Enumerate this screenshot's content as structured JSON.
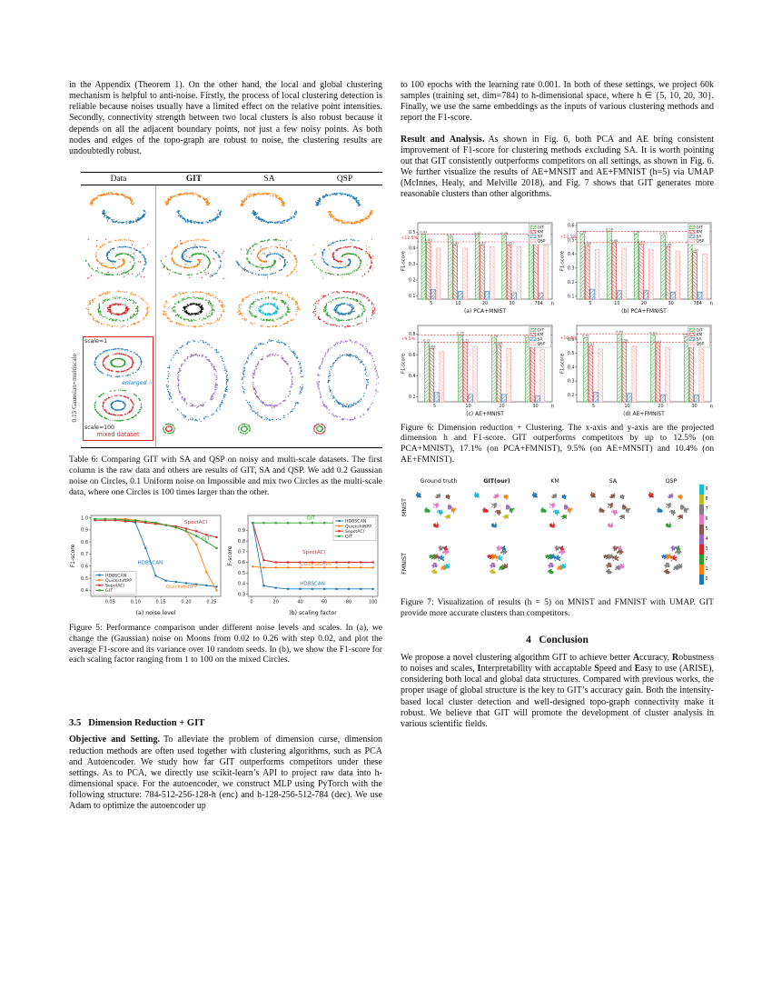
{
  "text": {
    "left_para1": "in the Appendix (Theorem 1). On the other hand, the local and global clustering mechanism is helpful to anti-noise. Firstly, the process of local clustering detection is reliable because noises usually have a limited effect on the relative point intensities. Secondly, connectivity strength between two local clusters is also robust because it depends on all the adjacent boundary points, not just a few noisy points. As both nodes and edges of the topo-graph are robust to noise, the clustering results are undoubtedly robust.",
    "table6_caption": "Table 6: Comparing GIT with SA and QSP on noisy and multi-scale datasets. The first column is the raw data and others are results of GIT, SA and QSP. We add 0.2 Gaussian noise on Circles, 0.1 Uniform noise on Impossible and mix two Circles as the multi-scale data, where one Circles is 100 times larger than the other.",
    "fig5_caption": "Figure 5: Performance comparison under different noise levels and scales. In (a), we change the (Gaussian) noise on Moons from 0.02 to 0.26 with step 0.02, and plot the average F1-score and its variance over 10 random seeds. In (b), we show the F1-score for each scaling factor ranging from 1 to 100 on the mixed Circles.",
    "sec35_title": "3.5   Dimension Reduction + GIT",
    "objective_label": "Objective and Setting.",
    "objective_body": "To alleviate the problem of dimension curse, dimension reduction methods are often used together with clustering algorithms, such as PCA and Autoencoder. We study how far GIT outperforms competitors under these settings. As to PCA, we directly use scikit-learn’s API to project raw data into h-dimensional space. For the autoencoder, we construct MLP using PyTorch with the following structure: 784-512-256-128-h (enc) and h-128-256-512-784 (dec). We use Adam to optimize the autoencoder up",
    "right_para1": "to 100 epochs with the learning rate 0.001. In both of these settings, we project 60k samples (training set, dim=784) to h-dimensional space, where h ∈ {5, 10, 20, 30}. Finally, we use the same embeddings as the inputs of various clustering methods and report the F1-score.",
    "result_label": "Result and Analysis.",
    "result_body": "As shown in Fig. 6, both PCA and AE bring consistent improvement of F1-score for clustering methods excluding SA. It is worth pointing out that GIT consistently outperforms competitors on all settings, as shown in Fig. 6. We further visualize the results of AE+MNSIT and AE+FMNIST (h=5) via UMAP (McInnes, Healy, and Melville 2018), and Fig. 7 shows that GIT generates more reasonable clusters than other algorithms.",
    "fig6_caption": "Figure 6: Dimension reduction + Clustering. The x-axis and y-axis are the projected dimension h and F1-score. GIT outperforms competitors by up to 12.5% (on PCA+MNIST), 17.1% (on PCA+FMNIST), 9.5% (on AE+MNSIT) and 10.4% (on AE+FMNIST).",
    "fig7_caption": "Figure 7: Visualization of results (h = 5) on MNIST and FMNIST with UMAP. GIT provide more accurate clusters than competitors.",
    "sec4_title": "4   Conclusion"
  },
  "conclusion_segments": [
    {
      "t": "We propose a novel clustering algorithm GIT to achieve better "
    },
    {
      "t": "A",
      "b": 1
    },
    {
      "t": "ccuracy, "
    },
    {
      "t": "R",
      "b": 1
    },
    {
      "t": "obustness to noises and scales, "
    },
    {
      "t": "I",
      "b": 1
    },
    {
      "t": "nterpretability with accaptable "
    },
    {
      "t": "S",
      "b": 1
    },
    {
      "t": "peed and "
    },
    {
      "t": "E",
      "b": 1
    },
    {
      "t": "asy to use (ARISE), considering both local and global data structures. Compared with previous works, the proper usage of global structure is the key to GIT’s accuracy gain. Both the intensity-based local cluster detection and well-designed topo-graph connectivity make it robust. We believe that GIT will promote the development of cluster analysis in various scientific fields."
    }
  ],
  "table6_fig": {
    "headers": [
      {
        "t": "Data",
        "b": 0
      },
      {
        "t": "GIT",
        "b": 1
      },
      {
        "t": "SA",
        "b": 0
      },
      {
        "t": "QSP",
        "b": 0
      }
    ],
    "side_label": "0.15 Gaussian+multiscale",
    "labels": {
      "scale1": "scale=1",
      "scale100": "scale=100",
      "mixed": "mixed dataset",
      "enlarged": "enlarged ⌕"
    },
    "rows": [
      {
        "h": 50,
        "cells": [
          {
            "type": "moons",
            "colors": [
              "#ff7f0e",
              "#1f77b4"
            ],
            "seed": 101
          },
          {
            "type": "moons",
            "colors": [
              "#ff7f0e",
              "#1f77b4"
            ],
            "seed": 102
          },
          {
            "type": "moons",
            "colors": [
              "#ff7f0e",
              "#1f77b4"
            ],
            "seed": 103
          },
          {
            "type": "moons",
            "colors": [
              "#1f77b4",
              "#ff7f0e"
            ],
            "seed": 104
          }
        ]
      },
      {
        "h": 52,
        "cells": [
          {
            "type": "spiral",
            "colors": [
              "#ff7f0e",
              "#1f77b4",
              "#2ca02c"
            ],
            "noise": "#d62728",
            "seed": 111
          },
          {
            "type": "spiral",
            "colors": [
              "#ff7f0e",
              "#1f77b4",
              "#2ca02c"
            ],
            "noise": "#d62728",
            "seed": 112
          },
          {
            "type": "spiral",
            "colors": [
              "#2ca02c",
              "#ff7f0e",
              "#1f77b4"
            ],
            "noise": "#8c564b",
            "seed": 113
          },
          {
            "type": "spiral",
            "colors": [
              "#1f77b4",
              "#d62728",
              "#2ca02c"
            ],
            "noise": "#ff7f0e",
            "seed": 114
          }
        ]
      },
      {
        "h": 48,
        "cells": [
          {
            "type": "rings",
            "colors": [
              "#ff7f0e",
              "#2ca02c",
              "#d62728"
            ],
            "seed": 121
          },
          {
            "type": "rings",
            "colors": [
              "#ff7f0e",
              "#2ca02c",
              "#000000"
            ],
            "seed": 122
          },
          {
            "type": "rings",
            "colors": [
              "#ff7f0e",
              "#2ca02c",
              "#17becf"
            ],
            "seed": 123
          },
          {
            "type": "rings",
            "colors": [
              "#d62728",
              "#2ca02c",
              "#1f77b4"
            ],
            "seed": 124
          }
        ]
      }
    ],
    "databox_plots": [
      {
        "type": "rings",
        "colors": [
          "#1f77b4",
          "#d62728",
          "#2ca02c"
        ],
        "seed": 131,
        "n": 0.012
      },
      {
        "type": "rings",
        "colors": [
          "#2ca02c",
          "#d62728",
          "#1f77b4"
        ],
        "seed": 132,
        "n": 0.012
      }
    ],
    "row4_cells": [
      {
        "type": "multiscale",
        "colors": [
          "#1f77b4",
          "#9467bd",
          "#2ca02c",
          "#d62728"
        ],
        "seed": 141
      },
      {
        "type": "multiscale",
        "colors": [
          "#1f77b4",
          "#9467bd",
          "#2ca02c",
          "#2ca02c"
        ],
        "seed": 142
      },
      {
        "type": "multiscale",
        "colors": [
          "#9467bd",
          "#1f77b4",
          "#d62728",
          "#2ca02c"
        ],
        "seed": 143
      }
    ]
  },
  "chart_data": [
    {
      "id": "fig5a",
      "type": "line",
      "xlabel": "(a) noise level",
      "ylabel": "F1-score",
      "x": [
        0.02,
        0.04,
        0.06,
        0.08,
        0.1,
        0.12,
        0.14,
        0.16,
        0.18,
        0.2,
        0.22,
        0.24,
        0.26
      ],
      "xlim": [
        0.012,
        0.268
      ],
      "xticks": [
        0.05,
        0.1,
        0.15,
        0.2,
        0.25
      ],
      "ylim": [
        0.35,
        1.02
      ],
      "yticks": [
        0.4,
        0.5,
        0.6,
        0.7,
        0.8,
        0.9,
        1.0
      ],
      "series": [
        {
          "name": "HDBSCAN",
          "color": "#1f77b4",
          "values": [
            0.99,
            0.99,
            0.99,
            0.98,
            0.96,
            0.75,
            0.52,
            0.48,
            0.47,
            0.46,
            0.45,
            0.44,
            0.43
          ]
        },
        {
          "name": "QuickshiftPP",
          "color": "#ff7f0e",
          "values": [
            0.99,
            0.99,
            0.99,
            0.99,
            0.98,
            0.97,
            0.96,
            0.94,
            0.92,
            0.89,
            0.78,
            0.55,
            0.4
          ]
        },
        {
          "name": "SepctACl",
          "color": "#d62728",
          "values": [
            0.98,
            0.98,
            0.98,
            0.97,
            0.97,
            0.96,
            0.95,
            0.94,
            0.93,
            0.91,
            0.89,
            0.86,
            0.84
          ]
        },
        {
          "name": "GIT",
          "color": "#2ca02c",
          "values": [
            0.99,
            0.99,
            0.99,
            0.98,
            0.98,
            0.97,
            0.96,
            0.94,
            0.92,
            0.89,
            0.85,
            0.8,
            0.75
          ]
        }
      ],
      "inline_labels": [
        {
          "text": "SpectACl",
          "color": "#d62728",
          "x": 0.72,
          "y": 0.1
        },
        {
          "text": "GIT",
          "color": "#2ca02c",
          "x": 0.85,
          "y": 0.31
        },
        {
          "text": "HDBSCAN",
          "color": "#1f77b4",
          "x": 0.36,
          "y": 0.6
        },
        {
          "text": "QuickshiftPP",
          "color": "#ff7f0e",
          "x": 0.58,
          "y": 0.9
        }
      ],
      "legend_pos": "bottom-left"
    },
    {
      "id": "fig5b",
      "type": "line",
      "xlabel": "(b) scaling factor",
      "ylabel": "F-score",
      "x": [
        1,
        10,
        20,
        30,
        40,
        50,
        60,
        70,
        80,
        90,
        100
      ],
      "xlim": [
        -3,
        104
      ],
      "xticks": [
        0,
        20,
        40,
        60,
        80,
        100
      ],
      "ylim": [
        0.28,
        1.04
      ],
      "yticks": [
        0.3,
        0.4,
        0.5,
        0.6,
        0.7,
        0.8,
        0.9
      ],
      "series": [
        {
          "name": "HDBSCAN",
          "color": "#1f77b4",
          "values": [
            0.97,
            0.38,
            0.36,
            0.35,
            0.35,
            0.35,
            0.35,
            0.35,
            0.35,
            0.35,
            0.35
          ]
        },
        {
          "name": "QuickshiftPP",
          "color": "#ff7f0e",
          "values": [
            0.56,
            0.55,
            0.55,
            0.55,
            0.55,
            0.55,
            0.55,
            0.55,
            0.55,
            0.55,
            0.55
          ]
        },
        {
          "name": "SepctACl",
          "color": "#d62728",
          "values": [
            0.97,
            0.62,
            0.6,
            0.6,
            0.6,
            0.6,
            0.6,
            0.6,
            0.6,
            0.6,
            0.6
          ]
        },
        {
          "name": "GIT",
          "color": "#2ca02c",
          "values": [
            0.97,
            0.97,
            0.97,
            0.97,
            0.97,
            0.97,
            0.97,
            0.97,
            0.97,
            0.97,
            0.97
          ]
        }
      ],
      "inline_labels": [
        {
          "text": "GIT",
          "color": "#2ca02c",
          "x": 0.45,
          "y": 0.05
        },
        {
          "text": "SpectACl",
          "color": "#d62728",
          "x": 0.42,
          "y": 0.47
        },
        {
          "text": "QuickShiftPP",
          "color": "#ff7f0e",
          "x": 0.4,
          "y": 0.62
        },
        {
          "text": "HDBSCAN",
          "color": "#1f77b4",
          "x": 0.4,
          "y": 0.86
        }
      ],
      "legend_pos": "top-right"
    },
    {
      "id": "fig6a",
      "type": "bar",
      "title": "(a) PCA+MNIST",
      "annotation": "+12.5%",
      "xlabel_right": "h",
      "ylabel": "F1-score",
      "categories": [
        "5",
        "10",
        "20",
        "30",
        "784"
      ],
      "ylim": [
        0.08,
        0.56
      ],
      "yticks": [
        0.1,
        0.2,
        0.3,
        0.4,
        0.5
      ],
      "series": [
        {
          "name": "GIT",
          "color": "#2ca02c",
          "values": [
            0.49,
            0.47,
            0.48,
            0.48,
            0.47
          ]
        },
        {
          "name": "KM",
          "color": "#d62728",
          "values": [
            0.44,
            0.42,
            0.42,
            0.42,
            0.43
          ]
        },
        {
          "name": "SA",
          "color": "#1f77b4",
          "values": [
            0.14,
            0.13,
            0.13,
            0.12,
            0.12
          ]
        },
        {
          "name": "QSP",
          "color": "#ff9896",
          "values": [
            0.4,
            0.4,
            0.41,
            0.41,
            0.42
          ]
        }
      ]
    },
    {
      "id": "fig6b",
      "type": "bar",
      "title": "(b) PCA+FMNIST",
      "annotation": "+17.1%",
      "xlabel_right": "h",
      "ylabel": "F1-score",
      "categories": [
        "5",
        "10",
        "20",
        "30",
        "784"
      ],
      "ylim": [
        0.08,
        0.62
      ],
      "yticks": [
        0.1,
        0.2,
        0.3,
        0.4,
        0.5,
        0.6
      ],
      "series": [
        {
          "name": "GIT",
          "color": "#2ca02c",
          "values": [
            0.54,
            0.56,
            0.54,
            0.53,
            0.47
          ]
        },
        {
          "name": "KM",
          "color": "#d62728",
          "values": [
            0.46,
            0.48,
            0.47,
            0.45,
            0.41
          ]
        },
        {
          "name": "SA",
          "color": "#1f77b4",
          "values": [
            0.15,
            0.14,
            0.14,
            0.13,
            0.13
          ]
        },
        {
          "name": "QSP",
          "color": "#ff9896",
          "values": [
            0.43,
            0.44,
            0.43,
            0.42,
            0.4
          ]
        }
      ]
    },
    {
      "id": "fig6c",
      "type": "bar",
      "title": "(c) AE+MNIST",
      "annotation": "+9.5%",
      "xlabel_right": "h",
      "ylabel": "F1-score",
      "categories": [
        "5",
        "10",
        "20",
        "30"
      ],
      "ylim": [
        0.15,
        0.88
      ],
      "yticks": [
        0.2,
        0.4,
        0.6,
        0.8
      ],
      "series": [
        {
          "name": "GIT",
          "color": "#2ca02c",
          "values": [
            0.72,
            0.79,
            0.76,
            0.76
          ]
        },
        {
          "name": "KM",
          "color": "#d62728",
          "values": [
            0.66,
            0.72,
            0.69,
            0.69
          ]
        },
        {
          "name": "SA",
          "color": "#1f77b4",
          "values": [
            0.24,
            0.22,
            0.22,
            0.21
          ]
        },
        {
          "name": "QSP",
          "color": "#ff9896",
          "values": [
            0.63,
            0.68,
            0.66,
            0.65
          ]
        }
      ]
    },
    {
      "id": "fig6d",
      "type": "bar",
      "title": "(d) AE+FMNIST",
      "annotation": "+10.4%",
      "xlabel_right": "h",
      "ylabel": "F1-score",
      "categories": [
        "5",
        "10",
        "20",
        "30"
      ],
      "ylim": [
        0.15,
        0.7
      ],
      "yticks": [
        0.2,
        0.3,
        0.4,
        0.5,
        0.6
      ],
      "series": [
        {
          "name": "GIT",
          "color": "#2ca02c",
          "values": [
            0.61,
            0.64,
            0.63,
            0.62
          ]
        },
        {
          "name": "KM",
          "color": "#d62728",
          "values": [
            0.55,
            0.58,
            0.57,
            0.56
          ]
        },
        {
          "name": "SA",
          "color": "#1f77b4",
          "values": [
            0.22,
            0.21,
            0.2,
            0.2
          ]
        },
        {
          "name": "QSP",
          "color": "#ff9896",
          "values": [
            0.53,
            0.55,
            0.54,
            0.53
          ]
        }
      ]
    }
  ],
  "fig7": {
    "col_headers": [
      {
        "t": "Ground truth",
        "b": 0
      },
      {
        "t": "GIT(our)",
        "b": 1
      },
      {
        "t": "KM",
        "b": 0
      },
      {
        "t": "SA",
        "b": 0
      },
      {
        "t": "QSP",
        "b": 0
      }
    ],
    "row_labels": [
      "MNIST",
      "FMNIST"
    ],
    "row_seeds": [
      7,
      13
    ],
    "column_colors": [
      [
        "#1f77b4",
        "#ff7f0e",
        "#2ca02c",
        "#d62728",
        "#9467bd",
        "#8c564b",
        "#e377c2",
        "#7f7f7f",
        "#bcbd22",
        "#17becf"
      ],
      [
        "#17becf",
        "#2ca02c",
        "#d62728",
        "#1f77b4",
        "#9467bd",
        "#ff7f0e",
        "#7f7f7f",
        "#e377c2",
        "#bcbd22",
        "#8c564b"
      ],
      [
        "#1f77b4",
        "#ff7f0e",
        "#2ca02c",
        "#d62728",
        "#9467bd",
        "#1f77b4",
        "#e377c2",
        "#7f7f7f",
        "#2ca02c",
        "#17becf"
      ],
      [
        "#8c564b",
        "#7f7f7f",
        "#8c564b",
        "#e377c2",
        "#8c564b",
        "#7f7f7f",
        "#8c564b",
        "#8c564b",
        "#7f7f7f",
        "#e377c2"
      ],
      [
        "#d62728",
        "#7f7f7f",
        "#1f77b4",
        "#2ca02c",
        "#7f7f7f",
        "#ff7f0e",
        "#7f7f7f",
        "#9467bd",
        "#8c564b",
        "#7f7f7f"
      ]
    ],
    "colorbar": {
      "colors": [
        "#17becf",
        "#bcbd22",
        "#7f7f7f",
        "#e377c2",
        "#8c564b",
        "#9467bd",
        "#d62728",
        "#2ca02c",
        "#ff7f0e",
        "#1f77b4"
      ],
      "labels": [
        "9",
        "8",
        "7",
        "6",
        "5",
        "4",
        "3",
        "2",
        "1",
        "0"
      ]
    }
  }
}
